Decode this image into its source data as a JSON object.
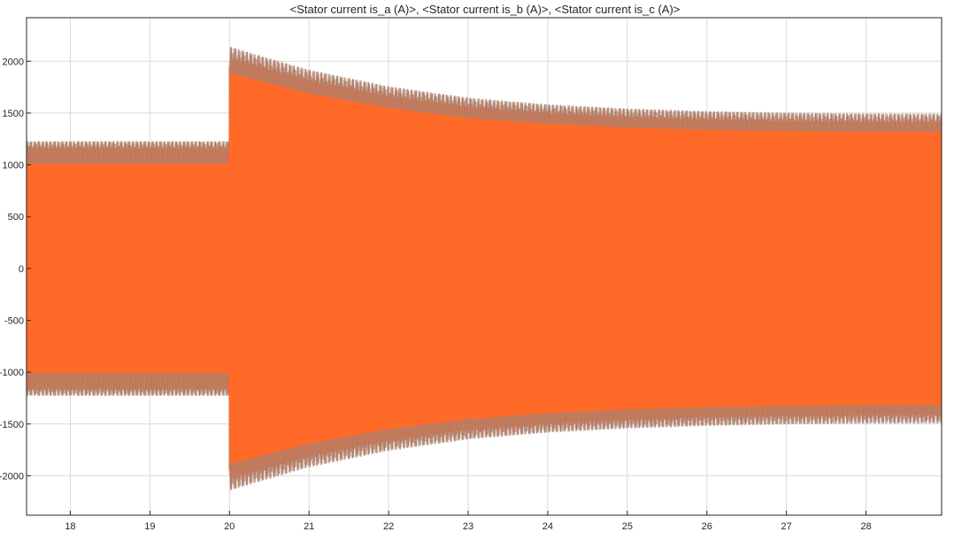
{
  "chart_data": {
    "type": "line",
    "title": "<Stator current is_a (A)>, <Stator current is_b (A)>, <Stator current is_c (A)>",
    "xlabel": "",
    "ylabel": "",
    "xlim": [
      17.45,
      28.95
    ],
    "ylim": [
      -2380,
      2420
    ],
    "x_ticks": [
      18,
      19,
      20,
      21,
      22,
      23,
      24,
      25,
      26,
      27,
      28
    ],
    "y_ticks": [
      -2000,
      -1500,
      -1000,
      -500,
      0,
      500,
      1000,
      1500,
      2000
    ],
    "grid": true,
    "legend": "none",
    "series": [
      {
        "color": "#0072BD",
        "note_visible": "mostly hidden beneath later traces",
        "envelope": {
          "t": [
            17.45,
            19.99,
            20.0,
            20.5,
            21.0,
            22.0,
            23.0,
            24.0,
            25.0,
            26.0,
            27.0,
            28.0,
            28.95
          ],
          "amp": [
            1230,
            1230,
            2145,
            2030,
            1920,
            1760,
            1650,
            1585,
            1545,
            1520,
            1505,
            1497,
            1495
          ]
        }
      },
      {
        "color": "#77AC30",
        "note_visible": "mostly hidden beneath later traces",
        "envelope": {
          "t": [
            17.45,
            19.99,
            20.0,
            20.5,
            21.0,
            22.0,
            23.0,
            24.0,
            25.0,
            26.0,
            27.0,
            28.0,
            28.95
          ],
          "amp": [
            1230,
            1230,
            2145,
            2030,
            1920,
            1760,
            1650,
            1585,
            1545,
            1520,
            1505,
            1497,
            1495
          ]
        }
      },
      {
        "color": "#FF6A28",
        "envelope": {
          "t": [
            17.45,
            19.99,
            20.0,
            20.5,
            21.0,
            22.0,
            23.0,
            24.0,
            25.0,
            26.0,
            27.0,
            28.0,
            28.95
          ],
          "amp": [
            1230,
            1230,
            2145,
            2030,
            1920,
            1760,
            1650,
            1585,
            1545,
            1520,
            1505,
            1497,
            1495
          ]
        }
      }
    ],
    "colors": {
      "grid": "#d9d9d9",
      "axes": "#262626",
      "stroke_outline": "#8c8c8c",
      "fill_core": "#FF6A28"
    }
  }
}
